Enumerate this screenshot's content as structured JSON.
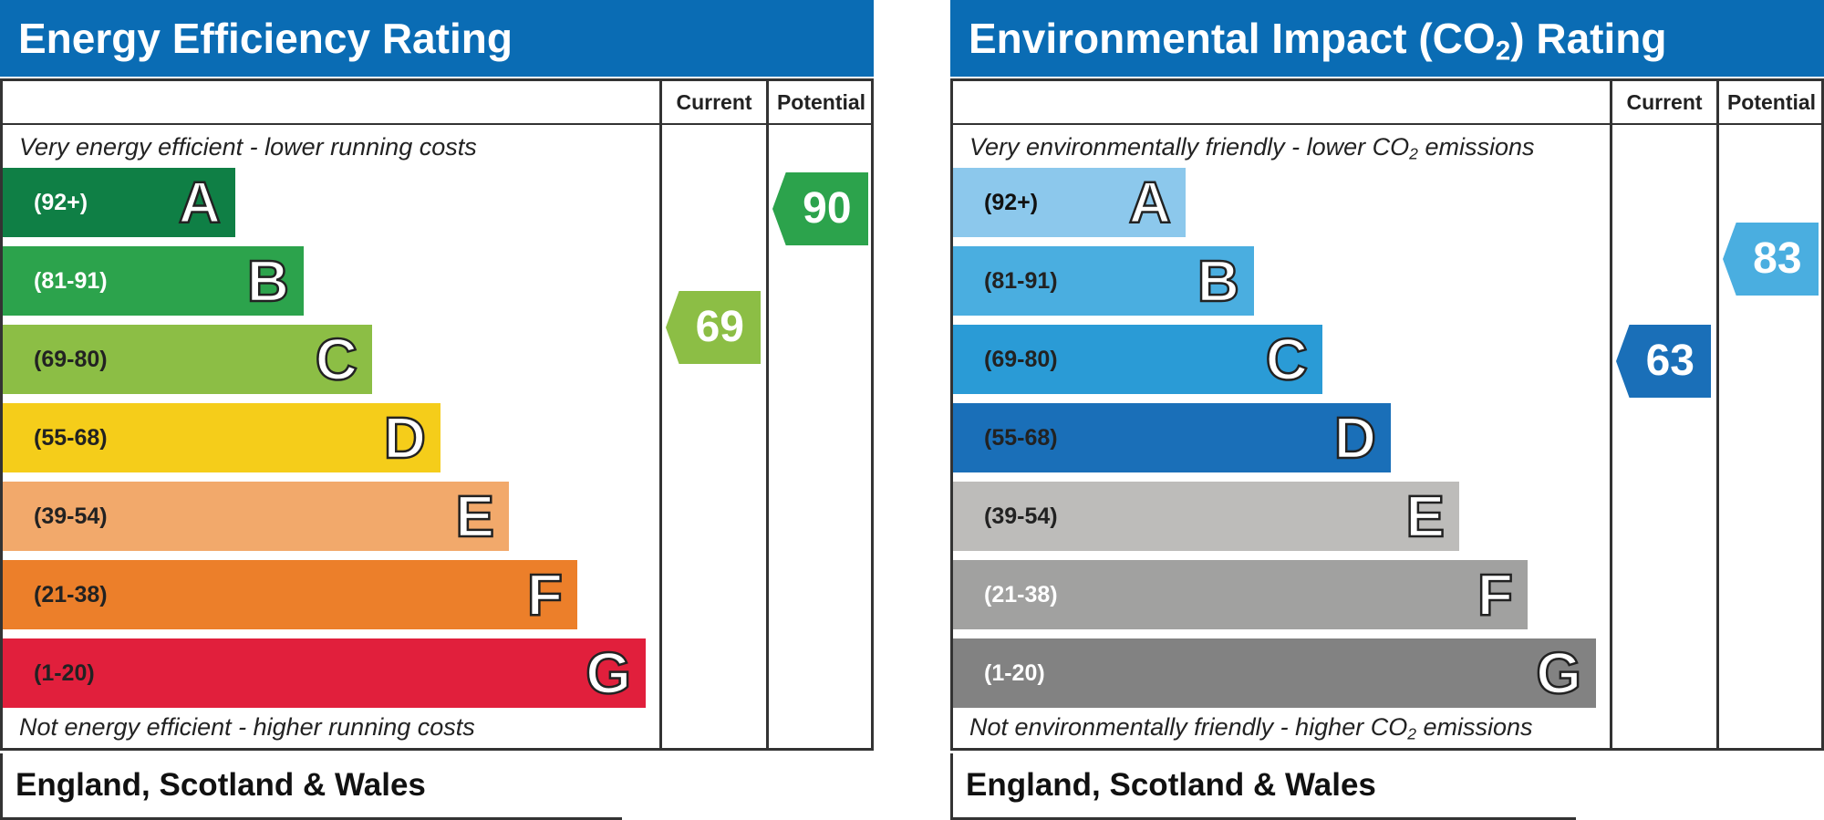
{
  "left": {
    "title": "Energy Efficiency Rating",
    "col_current": "Current",
    "col_potential": "Potential",
    "top_caption": "Very energy efficient - lower running costs",
    "bottom_caption": "Not energy efficient - higher running costs",
    "footer": "England, Scotland & Wales",
    "bands": [
      {
        "range": "(92+)",
        "letter": "A",
        "color": "#0f7f45",
        "text_color": "#ffffff"
      },
      {
        "range": "(81-91)",
        "letter": "B",
        "color": "#2ca34c",
        "text_color": "#ffffff"
      },
      {
        "range": "(69-80)",
        "letter": "C",
        "color": "#8cbe45",
        "text_color": "#222222"
      },
      {
        "range": "(55-68)",
        "letter": "D",
        "color": "#f5cd1a",
        "text_color": "#222222"
      },
      {
        "range": "(39-54)",
        "letter": "E",
        "color": "#f2a96b",
        "text_color": "#222222"
      },
      {
        "range": "(21-38)",
        "letter": "F",
        "color": "#ec7f2a",
        "text_color": "#222222"
      },
      {
        "range": "(1-20)",
        "letter": "G",
        "color": "#e11f3c",
        "text_color": "#222222"
      }
    ],
    "current": {
      "value": "69",
      "band": 2,
      "color": "#8cbe45"
    },
    "potential": {
      "value": "90",
      "band": 1,
      "color": "#2ca34c"
    }
  },
  "right": {
    "title_pre": "Environmental Impact (CO",
    "title_sub": "2",
    "title_post": ") Rating",
    "col_current": "Current",
    "col_potential": "Potential",
    "top_caption_pre": "Very environmentally friendly - lower CO",
    "top_caption_sub": "2",
    "top_caption_post": " emissions",
    "bottom_caption_pre": "Not environmentally friendly - higher CO",
    "bottom_caption_sub": "2",
    "bottom_caption_post": " emissions",
    "footer": "England, Scotland & Wales",
    "bands": [
      {
        "range": "(92+)",
        "letter": "A",
        "color": "#8cc8ec",
        "text_color": "#111111"
      },
      {
        "range": "(81-91)",
        "letter": "B",
        "color": "#4aaee0",
        "text_color": "#222222"
      },
      {
        "range": "(69-80)",
        "letter": "C",
        "color": "#2a9bd6",
        "text_color": "#222222"
      },
      {
        "range": "(55-68)",
        "letter": "D",
        "color": "#1a6fb8",
        "text_color": "#222222"
      },
      {
        "range": "(39-54)",
        "letter": "E",
        "color": "#bdbcba",
        "text_color": "#222222"
      },
      {
        "range": "(21-38)",
        "letter": "F",
        "color": "#a1a1a0",
        "text_color": "#ffffff"
      },
      {
        "range": "(1-20)",
        "letter": "G",
        "color": "#828282",
        "text_color": "#ffffff"
      }
    ],
    "current": {
      "value": "63",
      "band": 3,
      "color": "#1a6fb8"
    },
    "potential": {
      "value": "83",
      "band": 1,
      "color": "#4aaee0"
    }
  },
  "chart_data": [
    {
      "type": "bar",
      "title": "Energy Efficiency Rating",
      "categories": [
        "A",
        "B",
        "C",
        "D",
        "E",
        "F",
        "G"
      ],
      "ranges": [
        "(92+)",
        "(81-91)",
        "(69-80)",
        "(55-68)",
        "(39-54)",
        "(21-38)",
        "(1-20)"
      ],
      "current": 69,
      "potential": 90
    },
    {
      "type": "bar",
      "title": "Environmental Impact (CO2) Rating",
      "categories": [
        "A",
        "B",
        "C",
        "D",
        "E",
        "F",
        "G"
      ],
      "ranges": [
        "(92+)",
        "(81-91)",
        "(69-80)",
        "(55-68)",
        "(39-54)",
        "(21-38)",
        "(1-20)"
      ],
      "current": 63,
      "potential": 83
    }
  ]
}
